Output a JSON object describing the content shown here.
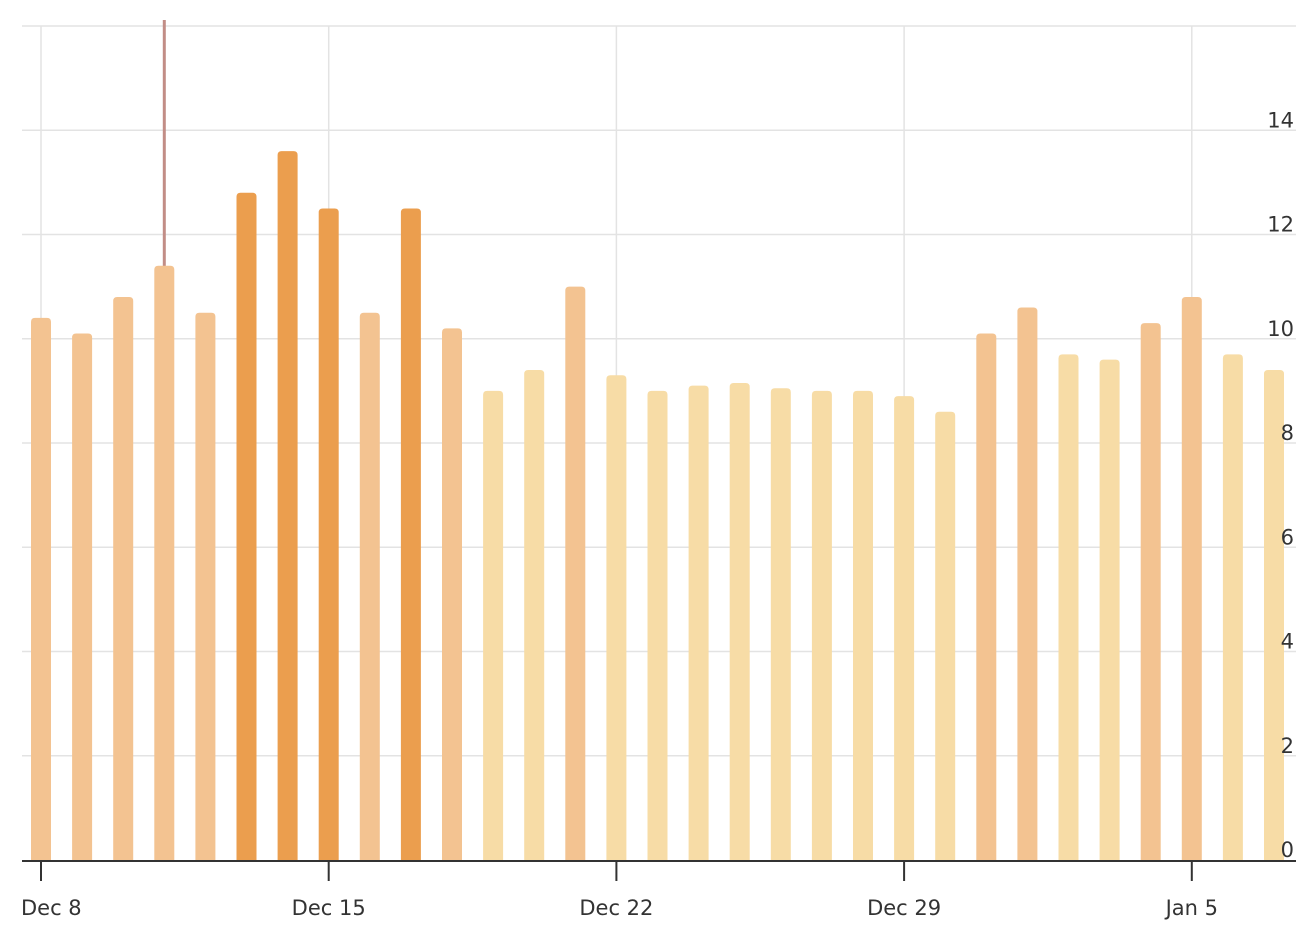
{
  "chart_data": {
    "type": "bar",
    "title": "",
    "xlabel": "",
    "ylabel": "",
    "ylim": [
      0,
      16
    ],
    "y_ticks": [
      "0",
      "2",
      "4",
      "6",
      "8",
      "10",
      "12",
      "14"
    ],
    "y_axis_side": "right",
    "grid": true,
    "x_tick_labels": [
      {
        "label": "Dec 8",
        "category_index": 0
      },
      {
        "label": "Dec 15",
        "category_index": 7
      },
      {
        "label": "Dec 22",
        "category_index": 14
      },
      {
        "label": "Dec 29",
        "category_index": 21
      },
      {
        "label": "Jan 5",
        "category_index": 28
      }
    ],
    "categories": [
      "Dec 8",
      "Dec 9",
      "Dec 10",
      "Dec 11",
      "Dec 12",
      "Dec 13",
      "Dec 14",
      "Dec 15",
      "Dec 16",
      "Dec 17",
      "Dec 18",
      "Dec 19",
      "Dec 20",
      "Dec 21",
      "Dec 22",
      "Dec 23",
      "Dec 24",
      "Dec 25",
      "Dec 26",
      "Dec 27",
      "Dec 28",
      "Dec 29",
      "Dec 30",
      "Dec 31",
      "Jan 1",
      "Jan 2",
      "Jan 3",
      "Jan 4",
      "Jan 5",
      "Jan 6",
      "Jan 7"
    ],
    "values": [
      10.4,
      10.1,
      10.8,
      11.4,
      10.5,
      12.8,
      13.6,
      12.5,
      10.5,
      12.5,
      10.2,
      9.0,
      9.4,
      11.0,
      9.3,
      9.0,
      9.1,
      9.15,
      9.05,
      9.0,
      9.0,
      8.9,
      8.6,
      10.1,
      10.6,
      9.7,
      9.6,
      10.3,
      10.8,
      9.7,
      9.4
    ],
    "intensity": [
      2,
      2,
      2,
      2,
      2,
      3,
      3,
      3,
      2,
      3,
      2,
      1,
      1,
      2,
      1,
      1,
      1,
      1,
      1,
      1,
      1,
      1,
      1,
      2,
      2,
      1,
      1,
      2,
      2,
      1,
      1
    ],
    "colors": {
      "level_1": "#f7dca6",
      "level_2": "#f3c391",
      "level_3": "#eb9e4e",
      "marker_line": "#c28d86",
      "grid": "#e3e3e3",
      "axis": "#333333"
    },
    "marker": {
      "category_index": 3
    }
  }
}
